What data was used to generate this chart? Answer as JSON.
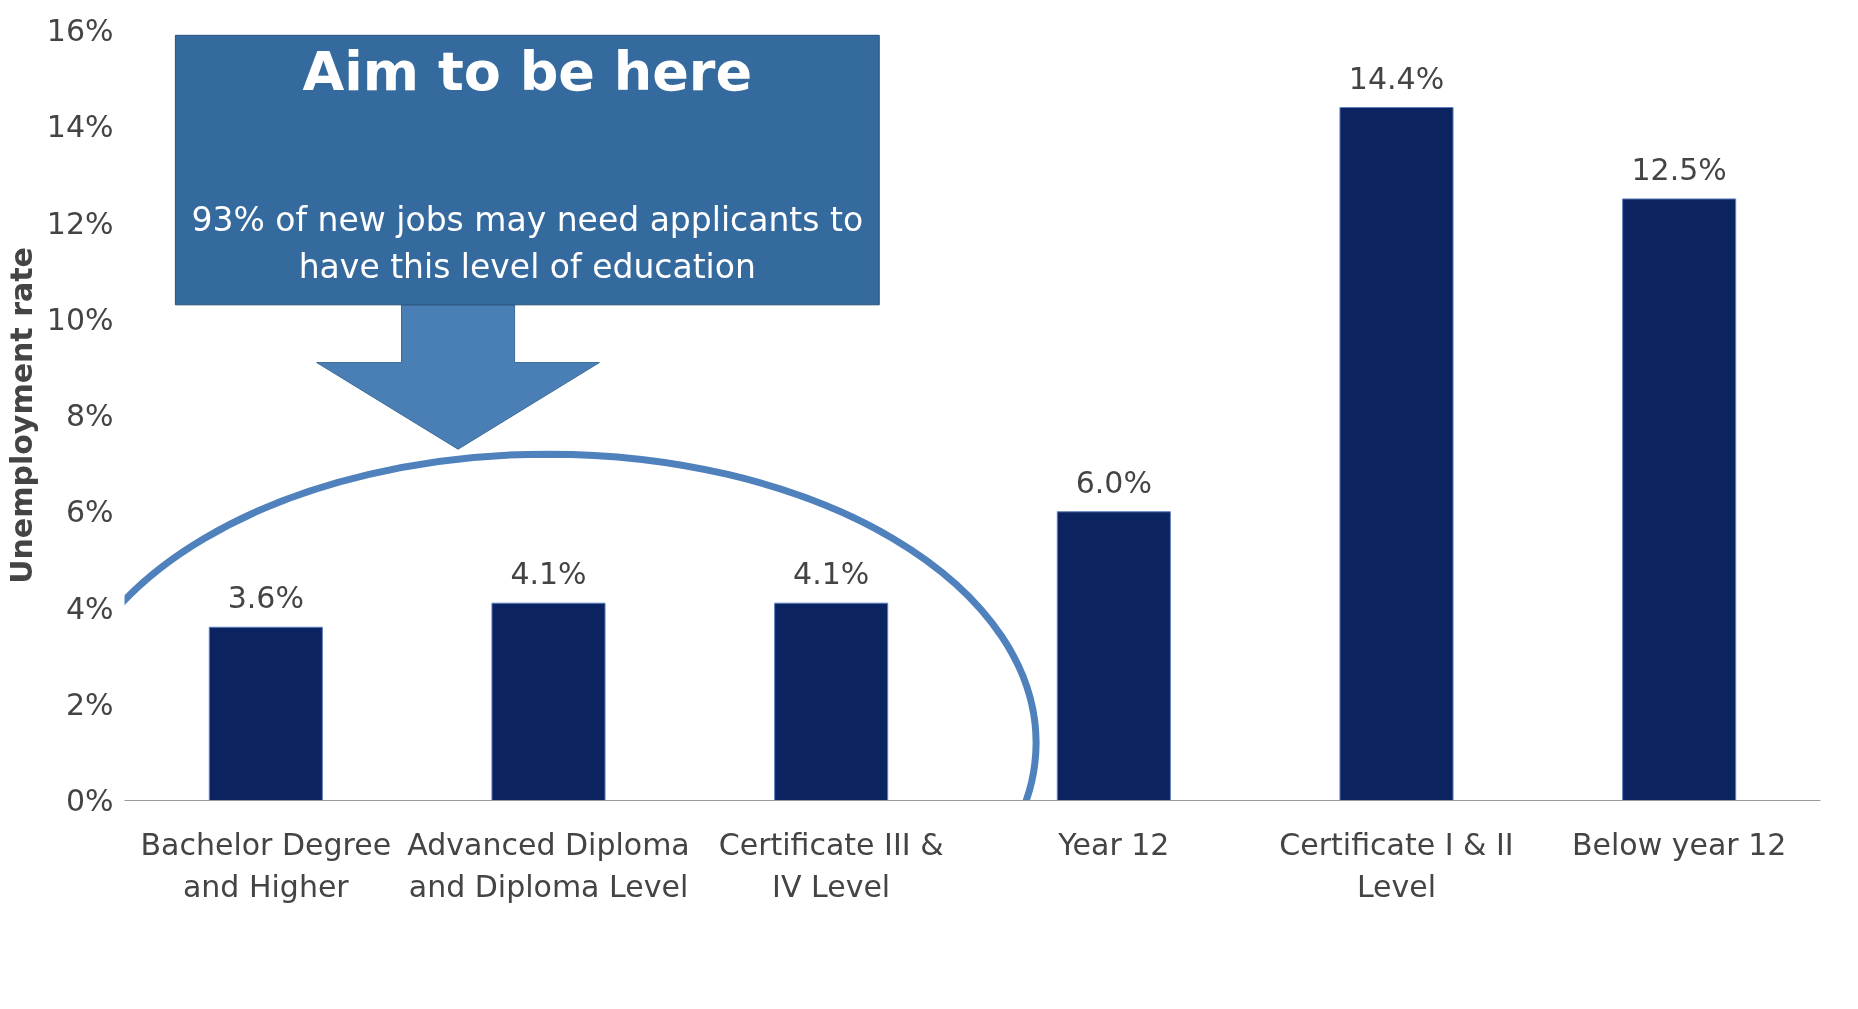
{
  "chart_data": {
    "type": "bar",
    "ylabel": "Unemployment rate",
    "categories": [
      "Bachelor Degree and Higher",
      "Advanced Diploma and Diploma Level",
      "Certificate III & IV Level",
      "Year 12",
      "Certificate I & II Level",
      "Below year 12"
    ],
    "values": [
      3.6,
      4.1,
      4.1,
      6.0,
      14.4,
      12.5
    ],
    "value_labels": [
      "3.6%",
      "4.1%",
      "4.1%",
      "6.0%",
      "14.4%",
      "12.5%"
    ],
    "color": "#0b2461",
    "ylim": [
      0,
      16
    ],
    "yticks": [
      {
        "value": 0,
        "label": "0%"
      },
      {
        "value": 2,
        "label": "2%"
      },
      {
        "value": 4,
        "label": "4%"
      },
      {
        "value": 6,
        "label": "6%"
      },
      {
        "value": 8,
        "label": "8%"
      },
      {
        "value": 10,
        "label": "10%"
      },
      {
        "value": 12,
        "label": "12%"
      },
      {
        "value": 14,
        "label": "14%"
      },
      {
        "value": 16,
        "label": "16%"
      }
    ],
    "grid": false,
    "annotations": [
      "Aim to be here",
      "93% of new jobs may need applicants to have this level of education"
    ]
  }
}
